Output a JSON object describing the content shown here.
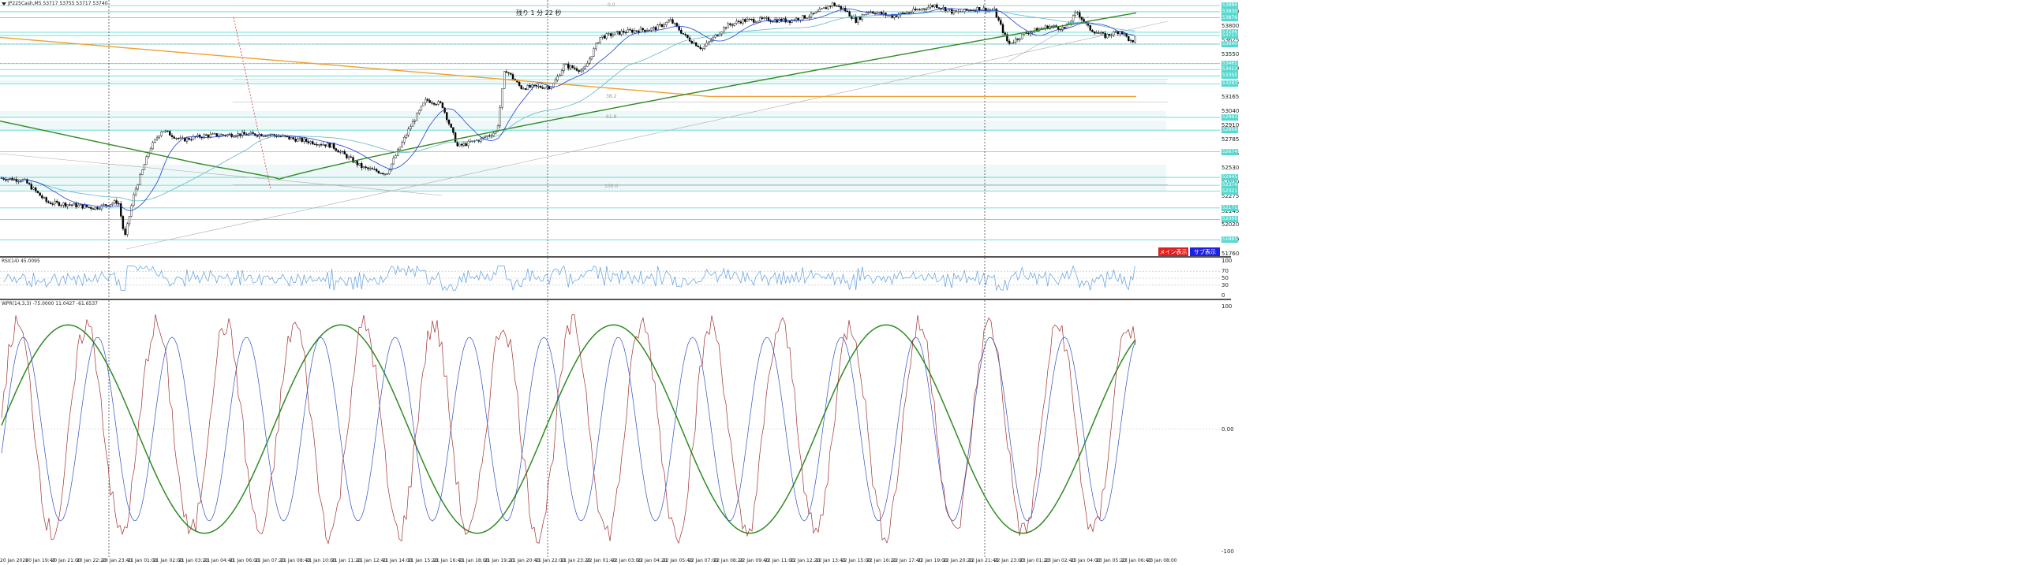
{
  "symbol_header": "JP225Cash,M5  53717 53755 53717 53740",
  "countdown": "残り 1 分 22 秒",
  "buttons": {
    "main": "メイン表示",
    "sub": "サブ表示"
  },
  "colors": {
    "bull": "#ffffff",
    "bear": "#000000",
    "level": "#55d8cf",
    "ma_fast": "#1f3fd8",
    "ma_mid": "#5fb8c8",
    "ma_slow": "#2e8b22",
    "ma_long": "#f0a030",
    "rsi": "#5f9fdf",
    "stoch_k": "#a03030",
    "stoch_d": "#3050c0",
    "stoch_slow": "#2e8b22"
  },
  "price_axis": [
    "53930",
    "53800",
    "53675",
    "53550",
    "53420",
    "53295",
    "53165",
    "53040",
    "52910",
    "52785",
    "52655",
    "52530",
    "52400",
    "52275",
    "52145",
    "52020",
    "51890",
    "51760"
  ],
  "price_levels": [
    "53986",
    "53930",
    "53876",
    "53746",
    "53717",
    "53640",
    "53465",
    "53412",
    "53355",
    "53283",
    "52983",
    "52868",
    "52674",
    "52445",
    "52374",
    "52321",
    "52171",
    "52068",
    "51885"
  ],
  "fib_labels": [
    "0.0",
    "61.8",
    "100.0",
    "38.2"
  ],
  "rsi": {
    "label": "RSI(14) 45.0095",
    "axis": [
      "100",
      "70",
      "50",
      "30",
      "0"
    ]
  },
  "stoch": {
    "label": "WPR(14,3,3) -75.0000 11.0427 -61.6537",
    "axis": [
      "100",
      "0.00",
      "-100"
    ]
  },
  "time_axis": [
    "20 Jan 2026",
    "20 Jan 19:40",
    "20 Jan 21:00",
    "20 Jan 22:20",
    "20 Jan 23:40",
    "21 Jan 01:00",
    "21 Jan 02:00",
    "21 Jan 03:20",
    "21 Jan 04:40",
    "21 Jan 06:00",
    "21 Jan 07:20",
    "21 Jan 08:40",
    "21 Jan 10:00",
    "21 Jan 11:20",
    "21 Jan 12:40",
    "21 Jan 14:00",
    "21 Jan 15:20",
    "21 Jan 16:40",
    "21 Jan 18:00",
    "21 Jan 19:20",
    "21 Jan 20:40",
    "21 Jan 22:00",
    "21 Jan 23:20",
    "22 Jan 01:40",
    "22 Jan 03:00",
    "22 Jan 04:20",
    "22 Jan 05:40",
    "22 Jan 07:00",
    "22 Jan 08:20",
    "22 Jan 09:40",
    "22 Jan 11:00",
    "22 Jan 12:20",
    "22 Jan 13:40",
    "22 Jan 15:00",
    "22 Jan 16:20",
    "22 Jan 17:40",
    "22 Jan 19:00",
    "22 Jan 20:20",
    "22 Jan 21:40",
    "22 Jan 23:00",
    "23 Jan 01:20",
    "23 Jan 02:40",
    "23 Jan 04:00",
    "23 Jan 05:20",
    "23 Jan 06:40",
    "23 Jan 08:00"
  ]
}
